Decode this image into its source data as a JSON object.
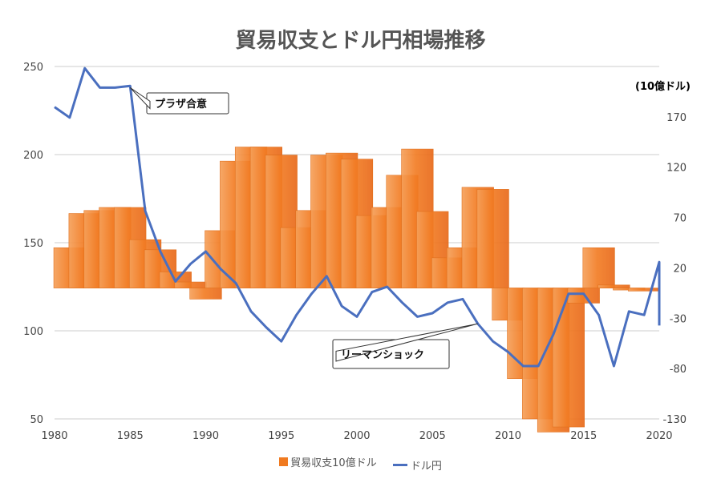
{
  "chart_data": {
    "type": "bar+line",
    "title": "貿易収支とドル円相場推移",
    "unit_label": "(10億ドル)",
    "x_ticks": [
      1980,
      1985,
      1990,
      1995,
      2000,
      2005,
      2010,
      2015,
      2020
    ],
    "x_range": [
      1980,
      2020
    ],
    "y_left": {
      "range": [
        50,
        250
      ],
      "ticks": [
        50,
        100,
        150,
        200,
        250
      ]
    },
    "y_right": {
      "range": [
        -130,
        220
      ],
      "ticks": [
        -130,
        -80,
        -30,
        20,
        70,
        120,
        170
      ]
    },
    "grid": true,
    "legend_position": "bottom",
    "series": [
      {
        "name": "貿易収支10億ドル",
        "type": "bar",
        "axis": "right",
        "color": "#f07a20",
        "x": [
          1981,
          1982,
          1983,
          1984,
          1985,
          1986,
          1987,
          1988,
          1989,
          1990,
          1991,
          1992,
          1993,
          1994,
          1995,
          1996,
          1997,
          1998,
          1999,
          2000,
          2001,
          2002,
          2003,
          2004,
          2005,
          2006,
          2007,
          2008,
          2009,
          2010,
          2011,
          2012,
          2013,
          2014,
          2015,
          2016,
          2017,
          2018,
          2019
        ],
        "values": [
          40,
          74,
          77,
          80,
          80,
          48,
          38,
          16,
          6,
          -11,
          57,
          126,
          140,
          140,
          132,
          60,
          77,
          132,
          134,
          128,
          72,
          80,
          112,
          138,
          76,
          30,
          40,
          100,
          98,
          -32,
          -90,
          -130,
          -143,
          -138,
          -15,
          40,
          3,
          -2,
          -3
        ]
      },
      {
        "name": "ドル円",
        "type": "line",
        "axis": "left",
        "color": "#4a6fbf",
        "x": [
          1980,
          1981,
          1982,
          1983,
          1984,
          1985,
          1986,
          1987,
          1988,
          1989,
          1990,
          1991,
          1992,
          1993,
          1994,
          1995,
          1996,
          1997,
          1998,
          1999,
          2000,
          2001,
          2002,
          2003,
          2004,
          2005,
          2006,
          2007,
          2008,
          2009,
          2010,
          2011,
          2012,
          2013,
          2014,
          2015,
          2016,
          2017,
          2018,
          2019,
          2020,
          2020
        ],
        "values": [
          227,
          221,
          249,
          238,
          238,
          239,
          168,
          145,
          128,
          138,
          145,
          135,
          127,
          111,
          102,
          94,
          109,
          121,
          131,
          114,
          108,
          122,
          125,
          116,
          108,
          110,
          116,
          118,
          104,
          94,
          88,
          80,
          80,
          98,
          121,
          121,
          109,
          80,
          111,
          109,
          139,
          103
        ]
      }
    ],
    "annotations": [
      {
        "text": "プラザ合意",
        "year": 1985,
        "value": 238
      },
      {
        "text": "リーマンショック",
        "year": 2008,
        "value": 104
      }
    ]
  }
}
